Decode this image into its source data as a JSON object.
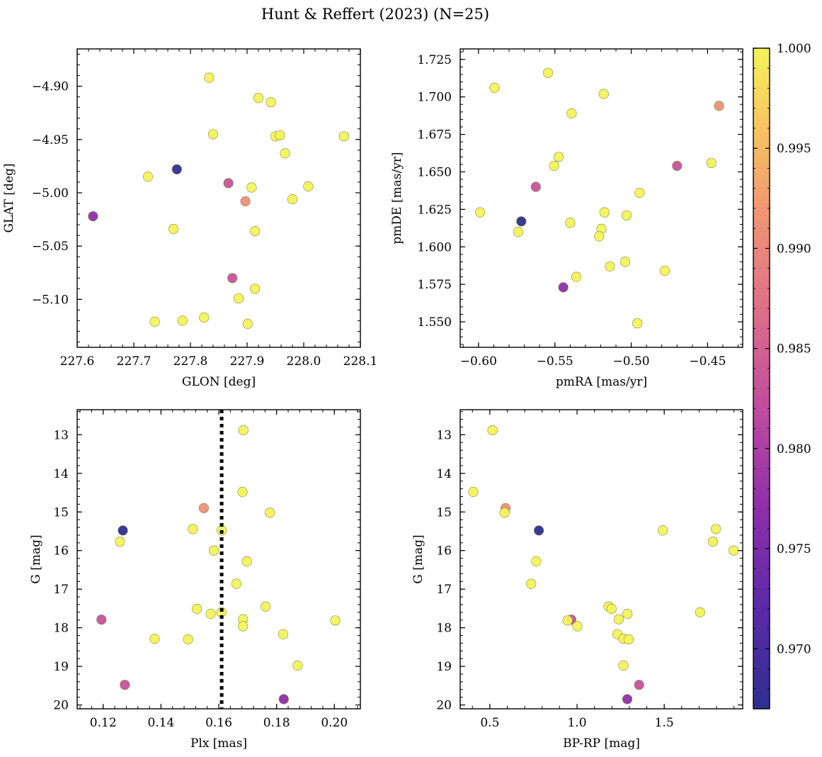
{
  "title": "Hunt & Reffert (2023) (N=25)",
  "colorbar": {
    "min": 0.967,
    "max": 1.0,
    "ticks": [
      0.97,
      0.975,
      0.98,
      0.985,
      0.99,
      0.995,
      1.0
    ],
    "tick_labels": [
      "0.970",
      "0.975",
      "0.980",
      "0.985",
      "0.990",
      "0.995",
      "1.000"
    ],
    "colormap": "plasma",
    "colors": [
      "#3b2f91",
      "#7628a6",
      "#ae3fb0",
      "#d36492",
      "#eb8d74",
      "#f8b864",
      "#f3f35a"
    ]
  },
  "chart_data": [
    {
      "type": "scatter",
      "id": "glon-glat",
      "xlabel": "GLON [deg]",
      "ylabel": "GLAT [deg]",
      "xlim": [
        227.6,
        228.1
      ],
      "ylim": [
        -5.145,
        -4.865
      ],
      "y_inverted": false,
      "xticks": [
        227.6,
        227.7,
        227.8,
        227.9,
        228.0,
        228.1
      ],
      "xtick_labels": [
        "227.6",
        "227.7",
        "227.8",
        "227.9",
        "228.0",
        "228.1"
      ],
      "yticks": [
        -4.9,
        -4.95,
        -5.0,
        -5.05,
        -5.1
      ],
      "ytick_labels": [
        "−4.90",
        "−4.95",
        "−5.00",
        "−5.05",
        "−5.10"
      ],
      "points": [
        {
          "x": 227.833,
          "y": -4.892,
          "c": 1.0
        },
        {
          "x": 227.92,
          "y": -4.911,
          "c": 1.0
        },
        {
          "x": 227.942,
          "y": -4.915,
          "c": 1.0
        },
        {
          "x": 227.84,
          "y": -4.945,
          "c": 1.0
        },
        {
          "x": 227.95,
          "y": -4.947,
          "c": 1.0
        },
        {
          "x": 227.958,
          "y": -4.946,
          "c": 1.0
        },
        {
          "x": 228.071,
          "y": -4.947,
          "c": 1.0
        },
        {
          "x": 227.967,
          "y": -4.963,
          "c": 1.0
        },
        {
          "x": 227.725,
          "y": -4.985,
          "c": 1.0
        },
        {
          "x": 227.776,
          "y": -4.978,
          "c": 0.967
        },
        {
          "x": 227.867,
          "y": -4.991,
          "c": 0.983
        },
        {
          "x": 227.908,
          "y": -4.995,
          "c": 1.0
        },
        {
          "x": 228.008,
          "y": -4.994,
          "c": 1.0
        },
        {
          "x": 227.897,
          "y": -5.008,
          "c": 0.991
        },
        {
          "x": 227.98,
          "y": -5.006,
          "c": 1.0
        },
        {
          "x": 227.628,
          "y": -5.022,
          "c": 0.977
        },
        {
          "x": 227.77,
          "y": -5.034,
          "c": 1.0
        },
        {
          "x": 227.914,
          "y": -5.036,
          "c": 1.0
        },
        {
          "x": 227.874,
          "y": -5.08,
          "c": 0.983
        },
        {
          "x": 227.914,
          "y": -5.09,
          "c": 1.0
        },
        {
          "x": 227.885,
          "y": -5.099,
          "c": 1.0
        },
        {
          "x": 227.824,
          "y": -5.117,
          "c": 1.0
        },
        {
          "x": 227.737,
          "y": -5.121,
          "c": 1.0
        },
        {
          "x": 227.786,
          "y": -5.12,
          "c": 1.0
        },
        {
          "x": 227.901,
          "y": -5.123,
          "c": 1.0
        }
      ]
    },
    {
      "type": "scatter",
      "id": "pmra-pmde",
      "xlabel": "pmRA [mas/yr]",
      "ylabel": "pmDE [mas/yr]",
      "xlim": [
        -0.612,
        -0.427
      ],
      "ylim": [
        1.533,
        1.732
      ],
      "y_inverted": false,
      "xticks": [
        -0.6,
        -0.55,
        -0.5,
        -0.45
      ],
      "xtick_labels": [
        "−0.60",
        "−0.55",
        "−0.50",
        "−0.45"
      ],
      "yticks": [
        1.55,
        1.575,
        1.6,
        1.625,
        1.65,
        1.675,
        1.7,
        1.725
      ],
      "ytick_labels": [
        "1.550",
        "1.575",
        "1.600",
        "1.625",
        "1.650",
        "1.675",
        "1.700",
        "1.725"
      ],
      "points": [
        {
          "x": -0.5545,
          "y": 1.716,
          "c": 1.0
        },
        {
          "x": -0.5895,
          "y": 1.706,
          "c": 1.0
        },
        {
          "x": -0.518,
          "y": 1.702,
          "c": 1.0
        },
        {
          "x": -0.4425,
          "y": 1.694,
          "c": 0.991
        },
        {
          "x": -0.539,
          "y": 1.689,
          "c": 1.0
        },
        {
          "x": -0.5475,
          "y": 1.66,
          "c": 1.0
        },
        {
          "x": -0.4475,
          "y": 1.656,
          "c": 1.0
        },
        {
          "x": -0.5505,
          "y": 1.654,
          "c": 1.0
        },
        {
          "x": -0.47,
          "y": 1.654,
          "c": 0.983
        },
        {
          "x": -0.5625,
          "y": 1.64,
          "c": 0.983
        },
        {
          "x": -0.4945,
          "y": 1.636,
          "c": 1.0
        },
        {
          "x": -0.599,
          "y": 1.623,
          "c": 1.0
        },
        {
          "x": -0.5175,
          "y": 1.623,
          "c": 1.0
        },
        {
          "x": -0.503,
          "y": 1.621,
          "c": 1.0
        },
        {
          "x": -0.572,
          "y": 1.617,
          "c": 0.967
        },
        {
          "x": -0.54,
          "y": 1.616,
          "c": 1.0
        },
        {
          "x": -0.5195,
          "y": 1.612,
          "c": 1.0
        },
        {
          "x": -0.574,
          "y": 1.61,
          "c": 1.0
        },
        {
          "x": -0.521,
          "y": 1.607,
          "c": 1.0
        },
        {
          "x": -0.504,
          "y": 1.59,
          "c": 1.0
        },
        {
          "x": -0.514,
          "y": 1.587,
          "c": 1.0
        },
        {
          "x": -0.478,
          "y": 1.584,
          "c": 1.0
        },
        {
          "x": -0.536,
          "y": 1.58,
          "c": 1.0
        },
        {
          "x": -0.5445,
          "y": 1.573,
          "c": 0.977
        },
        {
          "x": -0.496,
          "y": 1.549,
          "c": 1.0
        }
      ]
    },
    {
      "type": "scatter",
      "id": "plx-g",
      "xlabel": "Plx [mas]",
      "ylabel": "G [mag]",
      "xlim": [
        0.111,
        0.209
      ],
      "ylim": [
        12.35,
        20.1
      ],
      "y_inverted": true,
      "xticks": [
        0.12,
        0.14,
        0.16,
        0.18,
        0.2
      ],
      "xtick_labels": [
        "0.12",
        "0.14",
        "0.16",
        "0.18",
        "0.20"
      ],
      "yticks": [
        13,
        14,
        15,
        16,
        17,
        18,
        19,
        20
      ],
      "ytick_labels": [
        "13",
        "14",
        "15",
        "16",
        "17",
        "18",
        "19",
        "20"
      ],
      "vline": {
        "x": 0.161,
        "style": "dotted"
      },
      "points": [
        {
          "x": 0.1685,
          "y": 12.88,
          "c": 1.0
        },
        {
          "x": 0.1682,
          "y": 14.48,
          "c": 1.0
        },
        {
          "x": 0.1548,
          "y": 14.9,
          "c": 0.991
        },
        {
          "x": 0.1777,
          "y": 15.02,
          "c": 1.0
        },
        {
          "x": 0.151,
          "y": 15.44,
          "c": 1.0
        },
        {
          "x": 0.1268,
          "y": 15.48,
          "c": 0.967
        },
        {
          "x": 0.161,
          "y": 15.48,
          "c": 1.0
        },
        {
          "x": 0.1258,
          "y": 15.77,
          "c": 1.0
        },
        {
          "x": 0.1583,
          "y": 16.0,
          "c": 1.0
        },
        {
          "x": 0.1697,
          "y": 16.28,
          "c": 1.0
        },
        {
          "x": 0.1661,
          "y": 16.86,
          "c": 1.0
        },
        {
          "x": 0.1762,
          "y": 17.45,
          "c": 1.0
        },
        {
          "x": 0.1524,
          "y": 17.51,
          "c": 1.0
        },
        {
          "x": 0.1609,
          "y": 17.6,
          "c": 1.0
        },
        {
          "x": 0.1572,
          "y": 17.64,
          "c": 1.0
        },
        {
          "x": 0.1194,
          "y": 17.79,
          "c": 0.983
        },
        {
          "x": 0.1684,
          "y": 17.78,
          "c": 1.0
        },
        {
          "x": 0.2003,
          "y": 17.81,
          "c": 1.0
        },
        {
          "x": 0.1684,
          "y": 17.96,
          "c": 1.0
        },
        {
          "x": 0.1823,
          "y": 18.17,
          "c": 1.0
        },
        {
          "x": 0.1378,
          "y": 18.29,
          "c": 1.0
        },
        {
          "x": 0.1494,
          "y": 18.3,
          "c": 1.0
        },
        {
          "x": 0.1873,
          "y": 18.98,
          "c": 1.0
        },
        {
          "x": 0.1275,
          "y": 19.48,
          "c": 0.983
        },
        {
          "x": 0.1825,
          "y": 19.85,
          "c": 0.977
        }
      ]
    },
    {
      "type": "scatter",
      "id": "bprp-g",
      "xlabel": "BP-RP [mag]",
      "ylabel": "G [mag]",
      "xlim": [
        0.33,
        1.95
      ],
      "ylim": [
        12.35,
        20.1
      ],
      "y_inverted": true,
      "xticks": [
        0.5,
        1.0,
        1.5
      ],
      "xtick_labels": [
        "0.5",
        "1.0",
        "1.5"
      ],
      "yticks": [
        13,
        14,
        15,
        16,
        17,
        18,
        19,
        20
      ],
      "ytick_labels": [
        "13",
        "14",
        "15",
        "16",
        "17",
        "18",
        "19",
        "20"
      ],
      "points": [
        {
          "x": 0.515,
          "y": 12.88,
          "c": 1.0
        },
        {
          "x": 0.405,
          "y": 14.48,
          "c": 1.0
        },
        {
          "x": 0.59,
          "y": 14.9,
          "c": 0.991
        },
        {
          "x": 0.585,
          "y": 15.02,
          "c": 1.0
        },
        {
          "x": 0.781,
          "y": 15.48,
          "c": 0.967
        },
        {
          "x": 1.492,
          "y": 15.48,
          "c": 1.0
        },
        {
          "x": 1.796,
          "y": 15.44,
          "c": 1.0
        },
        {
          "x": 1.779,
          "y": 15.77,
          "c": 1.0
        },
        {
          "x": 1.898,
          "y": 16.0,
          "c": 1.0
        },
        {
          "x": 0.766,
          "y": 16.28,
          "c": 1.0
        },
        {
          "x": 0.737,
          "y": 16.86,
          "c": 1.0
        },
        {
          "x": 1.181,
          "y": 17.45,
          "c": 1.0
        },
        {
          "x": 1.198,
          "y": 17.51,
          "c": 1.0
        },
        {
          "x": 1.706,
          "y": 17.6,
          "c": 1.0
        },
        {
          "x": 1.289,
          "y": 17.64,
          "c": 1.0
        },
        {
          "x": 0.967,
          "y": 17.79,
          "c": 0.983
        },
        {
          "x": 1.239,
          "y": 17.78,
          "c": 1.0
        },
        {
          "x": 0.946,
          "y": 17.81,
          "c": 1.0
        },
        {
          "x": 1.002,
          "y": 17.96,
          "c": 1.0
        },
        {
          "x": 1.231,
          "y": 18.17,
          "c": 1.0
        },
        {
          "x": 1.266,
          "y": 18.29,
          "c": 1.0
        },
        {
          "x": 1.296,
          "y": 18.3,
          "c": 1.0
        },
        {
          "x": 1.266,
          "y": 18.98,
          "c": 1.0
        },
        {
          "x": 1.356,
          "y": 19.48,
          "c": 0.983
        },
        {
          "x": 1.288,
          "y": 19.85,
          "c": 0.977
        }
      ]
    }
  ]
}
